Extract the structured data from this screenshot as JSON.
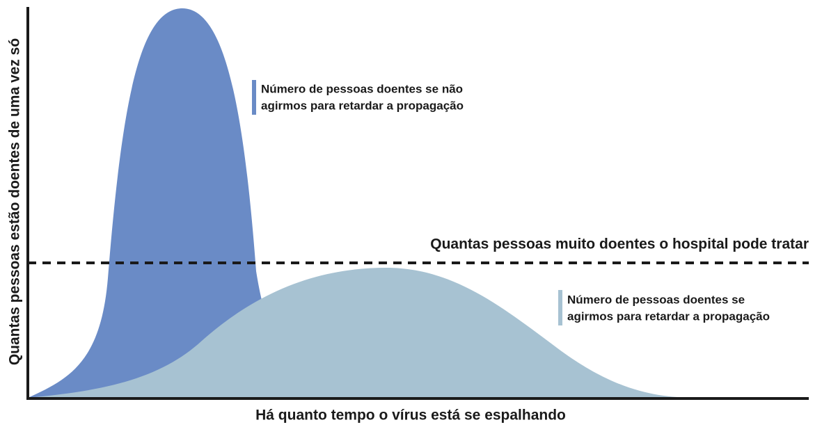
{
  "y_axis_label": "Quantas pessoas estão doentes de uma vez só",
  "x_axis_label": "Há quanto tempo o vírus está se espalhando",
  "capacity_label": "Quantas pessoas muito doentes o hospital pode tratar",
  "legend": [
    {
      "lines": [
        "Número de pessoas doentes se não",
        "agirmos para retardar a propagação"
      ]
    },
    {
      "lines": [
        "Número de pessoas doentes se",
        "agirmos para retardar a propagação"
      ]
    }
  ]
}
